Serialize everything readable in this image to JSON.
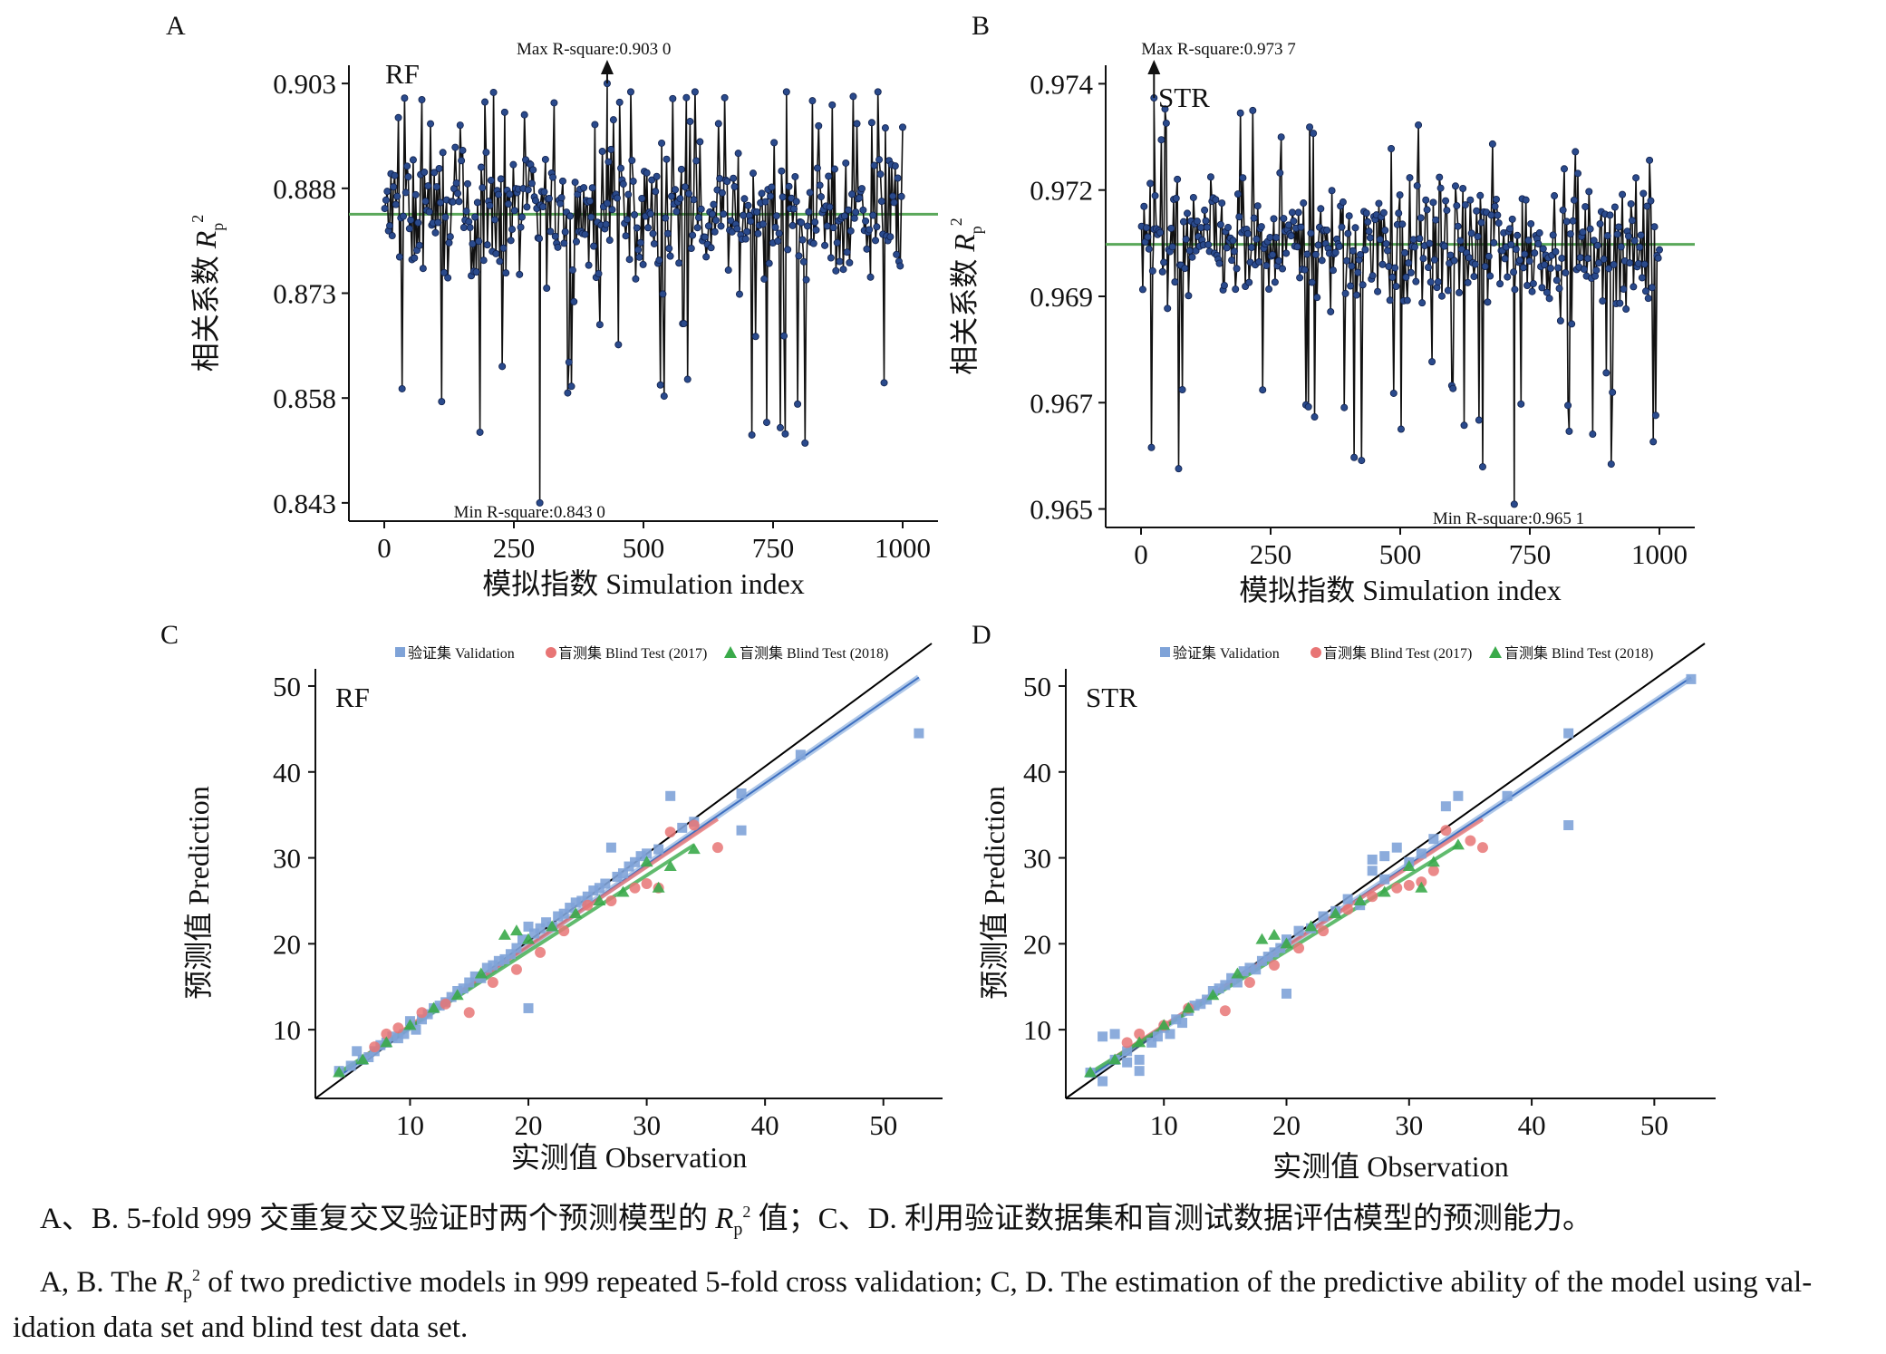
{
  "panels": [
    {
      "id": "A",
      "panel_label": "A",
      "model_label": "RF",
      "kind": "line",
      "y_label_zh": "相关系数",
      "y_label_sym": "R",
      "y_label_sub": "p",
      "y_label_sup": "2",
      "x_label": "模拟指数 Simulation index",
      "x_ticks": [
        "0",
        "250",
        "500",
        "750",
        "1000"
      ],
      "y_ticks": [
        "0.843",
        "0.858",
        "0.873",
        "0.888",
        "0.903"
      ],
      "max_text": "Max R-square:0.903 0",
      "min_text": "Min R-square:0.843 0"
    },
    {
      "id": "B",
      "panel_label": "B",
      "model_label": "STR",
      "kind": "line",
      "y_label_zh": "相关系数",
      "y_label_sym": "R",
      "y_label_sub": "p",
      "y_label_sup": "2",
      "x_label": "模拟指数 Simulation index",
      "x_ticks": [
        "0",
        "250",
        "500",
        "750",
        "1000"
      ],
      "y_ticks": [
        "0.965",
        "0.967",
        "0.969",
        "0.972",
        "0.974"
      ],
      "max_text": "Max R-square:0.973 7",
      "min_text": "Min R-square:0.965 1"
    },
    {
      "id": "C",
      "panel_label": "C",
      "model_label": "RF",
      "kind": "scatter",
      "y_label": "预测值 Prediction",
      "x_label": "实测值 Observation",
      "x_ticks": [
        "10",
        "20",
        "30",
        "40",
        "50"
      ],
      "y_ticks": [
        "10",
        "20",
        "30",
        "40",
        "50"
      ]
    },
    {
      "id": "D",
      "panel_label": "D",
      "model_label": "STR",
      "kind": "scatter",
      "y_label": "预测值 Prediction",
      "x_label": "实测值 Observation",
      "x_ticks": [
        "10",
        "20",
        "30",
        "40",
        "50"
      ],
      "y_ticks": [
        "10",
        "20",
        "30",
        "40",
        "50"
      ]
    }
  ],
  "legend": {
    "validation": "验证集 Validation",
    "blind2017": "盲测集 Blind Test (2017)",
    "blind2018": "盲测集 Blind Test (2018)"
  },
  "colors": {
    "line_points": "#2a4a8c",
    "line": "#111111",
    "mean_line": "#5aa85a",
    "validation": "#7fa3d8",
    "blind2017": "#e87575",
    "blind2018": "#3aaa4a",
    "identity": "#000000",
    "fit_validation": "#6f9ad6"
  },
  "caption": {
    "zh_before": "A、B. 5-fold 999 交重复交叉验证时两个预测模型的",
    "zh_after": "值；C、D. 利用验证数据集和盲测试数据评估模型的预测能力。",
    "en1_before": "A, B. The",
    "en1_after": "of two predictive models in 999 repeated 5-fold cross validation; C, D. The estimation of the predictive ability of the model using val-",
    "en2": "idation data set and blind test data set.",
    "sym": "R",
    "sub": "p",
    "sup": "2"
  },
  "chart_data": [
    {
      "type": "line",
      "panel": "A",
      "title": "RF",
      "xlabel": "模拟指数 Simulation index",
      "ylabel": "相关系数 Rp2",
      "xlim": [
        0,
        1000
      ],
      "ylim": [
        0.843,
        0.903
      ],
      "n_points": 999,
      "mean": 0.8843,
      "max": {
        "x": 430,
        "y": 0.903
      },
      "min": {
        "x": 300,
        "y": 0.843
      },
      "sample_series": {
        "x": [
          1,
          40,
          80,
          120,
          160,
          200,
          240,
          280,
          320,
          360,
          400,
          440,
          480,
          520,
          560,
          600,
          640,
          680,
          720,
          760,
          800,
          840,
          880,
          920,
          960,
          999
        ],
        "y": [
          0.872,
          0.886,
          0.851,
          0.893,
          0.889,
          0.866,
          0.879,
          0.885,
          0.878,
          0.868,
          0.895,
          0.903,
          0.882,
          0.871,
          0.892,
          0.884,
          0.877,
          0.889,
          0.881,
          0.866,
          0.896,
          0.883,
          0.874,
          0.899,
          0.887,
          0.884
        ]
      }
    },
    {
      "type": "line",
      "panel": "B",
      "title": "STR",
      "xlabel": "模拟指数 Simulation index",
      "ylabel": "相关系数 Rp2",
      "xlim": [
        0,
        1000
      ],
      "ylim": [
        0.965,
        0.974
      ],
      "n_points": 999,
      "mean": 0.9706,
      "max": {
        "x": 25,
        "y": 0.9737
      },
      "min": {
        "x": 720,
        "y": 0.9651
      },
      "sample_series": {
        "x": [
          1,
          40,
          80,
          120,
          160,
          200,
          240,
          280,
          320,
          360,
          400,
          440,
          480,
          520,
          560,
          600,
          640,
          680,
          720,
          760,
          800,
          840,
          880,
          920,
          960,
          999
        ],
        "y": [
          0.9706,
          0.9712,
          0.969,
          0.9718,
          0.9701,
          0.9695,
          0.9709,
          0.9721,
          0.9699,
          0.9704,
          0.9689,
          0.9715,
          0.9702,
          0.971,
          0.9693,
          0.972,
          0.9707,
          0.9698,
          0.9715,
          0.97,
          0.9711,
          0.9697,
          0.9719,
          0.9703,
          0.9709,
          0.9706
        ]
      }
    },
    {
      "type": "scatter",
      "panel": "C",
      "title": "RF",
      "xlabel": "实测值 Observation",
      "ylabel": "预测值 Prediction",
      "xlim": [
        2,
        55
      ],
      "ylim": [
        2,
        52
      ],
      "series": [
        {
          "name": "验证集 Validation",
          "x": [
            4,
            5,
            5.5,
            6,
            6.5,
            7,
            7.5,
            8,
            8.5,
            9,
            9.5,
            10,
            10.5,
            11,
            11.5,
            12,
            12.5,
            13,
            13.5,
            14,
            14.5,
            15,
            15.5,
            16,
            16.5,
            17,
            17.5,
            18,
            18.5,
            19,
            19.5,
            20,
            20,
            20.5,
            21,
            21.5,
            22,
            22.5,
            23,
            23.5,
            24,
            24.5,
            25,
            25.5,
            26,
            26.5,
            27,
            27.5,
            28,
            28.5,
            29,
            29.5,
            30,
            31,
            32,
            33,
            34,
            38,
            38,
            43,
            53
          ],
          "y": [
            5.2,
            5.8,
            7.5,
            6.5,
            6.8,
            7.5,
            8.2,
            8.5,
            9.2,
            9.0,
            9.5,
            11,
            10,
            11.2,
            11.8,
            12.5,
            12.8,
            13.2,
            13.8,
            14.5,
            14.8,
            15.5,
            16.2,
            16.0,
            17.2,
            17.5,
            18.0,
            18.2,
            18.8,
            19.5,
            20.5,
            12.5,
            22,
            21.2,
            21.8,
            22.5,
            22,
            23.2,
            23.5,
            24.2,
            24.8,
            25.0,
            25.5,
            26.2,
            26.5,
            27.0,
            31.2,
            27.8,
            28.2,
            29.0,
            29.5,
            30.2,
            30.5,
            31.0,
            37.2,
            33.5,
            34.2,
            37.5,
            33.2,
            42,
            44.5
          ]
        },
        {
          "name": "盲测集 Blind Test (2017)",
          "x": [
            7,
            8,
            9,
            11,
            13,
            15,
            17,
            19,
            21,
            23,
            25,
            27,
            29,
            30,
            31,
            32,
            34,
            36
          ],
          "y": [
            8,
            9.5,
            10.2,
            12,
            13,
            12,
            15.5,
            17,
            19,
            21.5,
            24.5,
            25,
            26.5,
            27,
            26.5,
            33,
            33.8,
            31.2
          ]
        },
        {
          "name": "盲测集 Blind Test (2018)",
          "x": [
            4,
            6,
            8,
            10,
            12,
            14,
            16,
            18,
            19,
            20,
            22,
            24,
            26,
            28,
            30,
            31,
            32,
            34
          ],
          "y": [
            5,
            6.5,
            8.5,
            10.5,
            12.5,
            14,
            16.5,
            21,
            21.5,
            20.5,
            22,
            23.5,
            25,
            26,
            29.5,
            26.5,
            29,
            31
          ]
        }
      ]
    },
    {
      "type": "scatter",
      "panel": "D",
      "title": "STR",
      "xlabel": "实测值 Observation",
      "ylabel": "预测值 Prediction",
      "xlim": [
        2,
        55
      ],
      "ylim": [
        2,
        52
      ],
      "series": [
        {
          "name": "验证集 Validation",
          "x": [
            4,
            5,
            5,
            6,
            6,
            7,
            7,
            8,
            8,
            9,
            9.5,
            10,
            10.5,
            11,
            11.5,
            12,
            12.5,
            13,
            13.5,
            14,
            14.5,
            15,
            15.5,
            16,
            16.5,
            17,
            17.5,
            18,
            18.5,
            19,
            19.5,
            20,
            20,
            21,
            22,
            23,
            24,
            25,
            26,
            27,
            27,
            28,
            28,
            29,
            30,
            31,
            32,
            33,
            34,
            38,
            43,
            43,
            53
          ],
          "y": [
            5,
            9.2,
            4,
            9.5,
            6.5,
            6.2,
            7.5,
            5.2,
            6.5,
            8.5,
            9.2,
            10.2,
            9.5,
            11.2,
            10.8,
            12.2,
            12.8,
            13.0,
            13.5,
            14.5,
            14.8,
            15.2,
            16.0,
            15.5,
            16.8,
            17.2,
            17.0,
            18.0,
            18.5,
            19.0,
            19.5,
            14.2,
            20.5,
            21.5,
            21.8,
            23.2,
            23.8,
            25.2,
            24.5,
            28.5,
            29.8,
            30.2,
            27.5,
            31.2,
            29.5,
            30.5,
            32.2,
            36.0,
            37.2,
            37.2,
            44.5,
            33.8,
            50.8
          ]
        },
        {
          "name": "盲测集 Blind Test (2017)",
          "x": [
            7,
            8,
            10,
            12,
            15,
            17,
            19,
            21,
            23,
            25,
            27,
            29,
            30,
            31,
            32,
            33,
            35,
            36
          ],
          "y": [
            8.5,
            9.5,
            10.5,
            12.5,
            12.2,
            15.5,
            17.5,
            19.5,
            21.5,
            24.0,
            25.5,
            26.5,
            26.8,
            27.2,
            28.5,
            33.2,
            32.0,
            31.2
          ]
        },
        {
          "name": "盲测集 Blind Test (2018)",
          "x": [
            4,
            6,
            8,
            10,
            12,
            14,
            16,
            18,
            19,
            20,
            22,
            24,
            26,
            28,
            30,
            31,
            32,
            34
          ],
          "y": [
            5,
            6.5,
            8.5,
            10.5,
            12.5,
            14,
            16.5,
            20.5,
            21,
            20.0,
            22,
            23.5,
            25,
            26,
            29,
            26.5,
            29.5,
            31.5
          ]
        }
      ]
    }
  ]
}
